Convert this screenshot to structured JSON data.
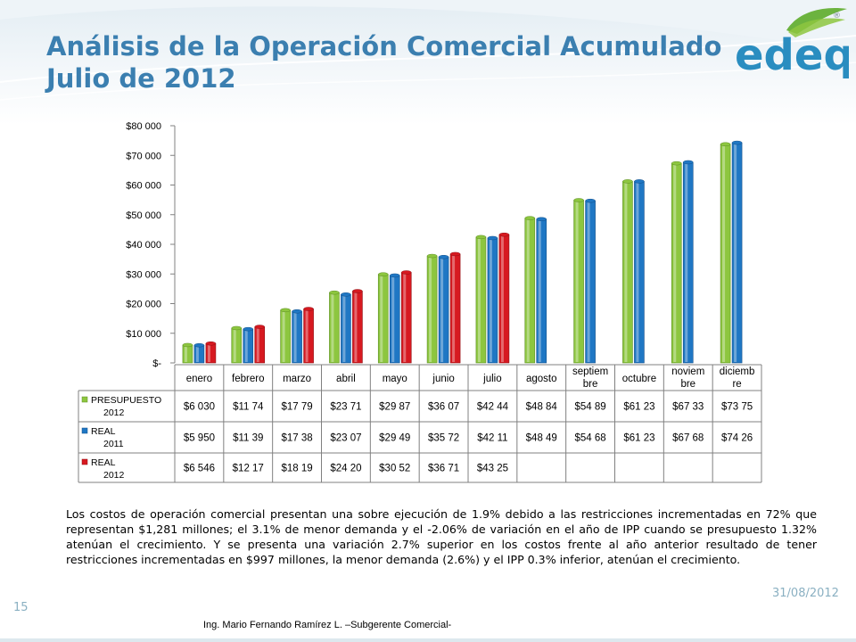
{
  "slide": {
    "title_line1": "Análisis de la Operación Comercial Acumulado",
    "title_line2": "Julio de 2012",
    "logo_text": "edeq",
    "logo_registered": "®",
    "paragraph": "Los costos de operación comercial presentan una sobre ejecución de 1.9% debido a las restricciones incrementadas en 72% que representan $1,281 millones; el 3.1% de menor demanda y el -2.06% de variación en el año de IPP cuando se presupuesto 1.32% atenúan el crecimiento.  Y se presenta una variación 2.7% superior en los costos frente al año anterior resultado de tener restricciones incrementadas en $997 millones, la menor demanda (2.6%)  y el IPP 0.3% inferior, atenúan el crecimiento.",
    "slide_number": "15",
    "date": "31/08/2012",
    "footer": "Ing. Mario Fernando Ramírez L. –Subgerente Comercial-"
  },
  "colors": {
    "title": "#3b7fb0",
    "logo_blue": "#2a8dc0",
    "logo_green": "#6cb33f",
    "presupuesto": "#8dc63f",
    "real2011": "#1f77c4",
    "real2012": "#d71920"
  },
  "chart_data": {
    "type": "bar",
    "title": "",
    "xlabel": "",
    "ylabel": "",
    "ylim": [
      0,
      80000
    ],
    "yticks": [
      0,
      10000,
      20000,
      30000,
      40000,
      50000,
      60000,
      70000,
      80000
    ],
    "ytick_labels": [
      "$-",
      "$10 000",
      "$20 000",
      "$30 000",
      "$40 000",
      "$50 000",
      "$60 000",
      "$70 000",
      "$80 000"
    ],
    "grid": false,
    "legend": "data-table",
    "categories": [
      [
        "enero"
      ],
      [
        "febrero"
      ],
      [
        "marzo"
      ],
      [
        "abril"
      ],
      [
        "mayo"
      ],
      [
        "junio"
      ],
      [
        "julio"
      ],
      [
        "agosto"
      ],
      [
        "septiem",
        "bre"
      ],
      [
        "octubre"
      ],
      [
        "noviem",
        "bre"
      ],
      [
        "diciemb",
        "re"
      ]
    ],
    "series": [
      {
        "name": [
          "PRESUPUESTO",
          "2012"
        ],
        "values": [
          6030,
          11740,
          17790,
          23710,
          29870,
          36070,
          42440,
          48840,
          54890,
          61230,
          67330,
          73750
        ],
        "labels": [
          "$6 030",
          "$11 74",
          "$17 79",
          "$23 71",
          "$29 87",
          "$36 07",
          "$42 44",
          "$48 84",
          "$54 89",
          "$61 23",
          "$67 33",
          "$73 75"
        ]
      },
      {
        "name": [
          "REAL",
          "2011"
        ],
        "values": [
          5950,
          11390,
          17380,
          23070,
          29490,
          35720,
          42110,
          48490,
          54680,
          61230,
          67680,
          74260
        ],
        "labels": [
          "$5 950",
          "$11 39",
          "$17 38",
          "$23 07",
          "$29 49",
          "$35 72",
          "$42 11",
          "$48 49",
          "$54 68",
          "$61 23",
          "$67 68",
          "$74 26"
        ]
      },
      {
        "name": [
          "REAL",
          "2012"
        ],
        "values": [
          6546,
          12170,
          18190,
          24200,
          30520,
          36710,
          43250,
          null,
          null,
          null,
          null,
          null
        ],
        "labels": [
          "$6 546",
          "$12 17",
          "$18 19",
          "$24 20",
          "$30 52",
          "$36 71",
          "$43 25",
          "",
          "",
          "",
          "",
          ""
        ]
      }
    ]
  }
}
